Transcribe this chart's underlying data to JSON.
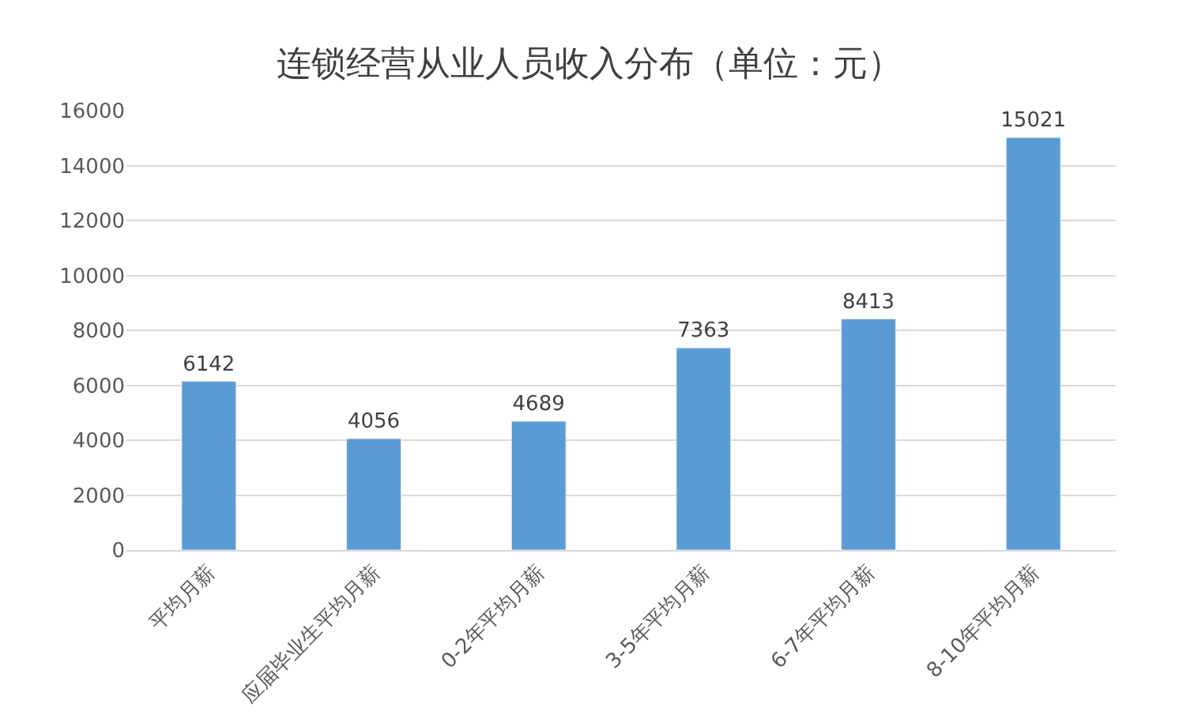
{
  "chart_data": {
    "type": "bar",
    "title": "连锁经营从业人员收入分布（单位：元）",
    "categories": [
      "平均月薪",
      "应届毕业生平均月薪",
      "0-2年平均月薪",
      "3-5年平均月薪",
      "6-7年平均月薪",
      "8-10年平均月薪"
    ],
    "values": [
      6142,
      4056,
      4689,
      7363,
      8413,
      15021
    ],
    "color": "#5b9bd5",
    "ylim": [
      0,
      16000
    ],
    "yticks": [
      0,
      2000,
      4000,
      6000,
      8000,
      10000,
      12000,
      14000,
      16000
    ],
    "grid": "y",
    "data_labels": true
  }
}
